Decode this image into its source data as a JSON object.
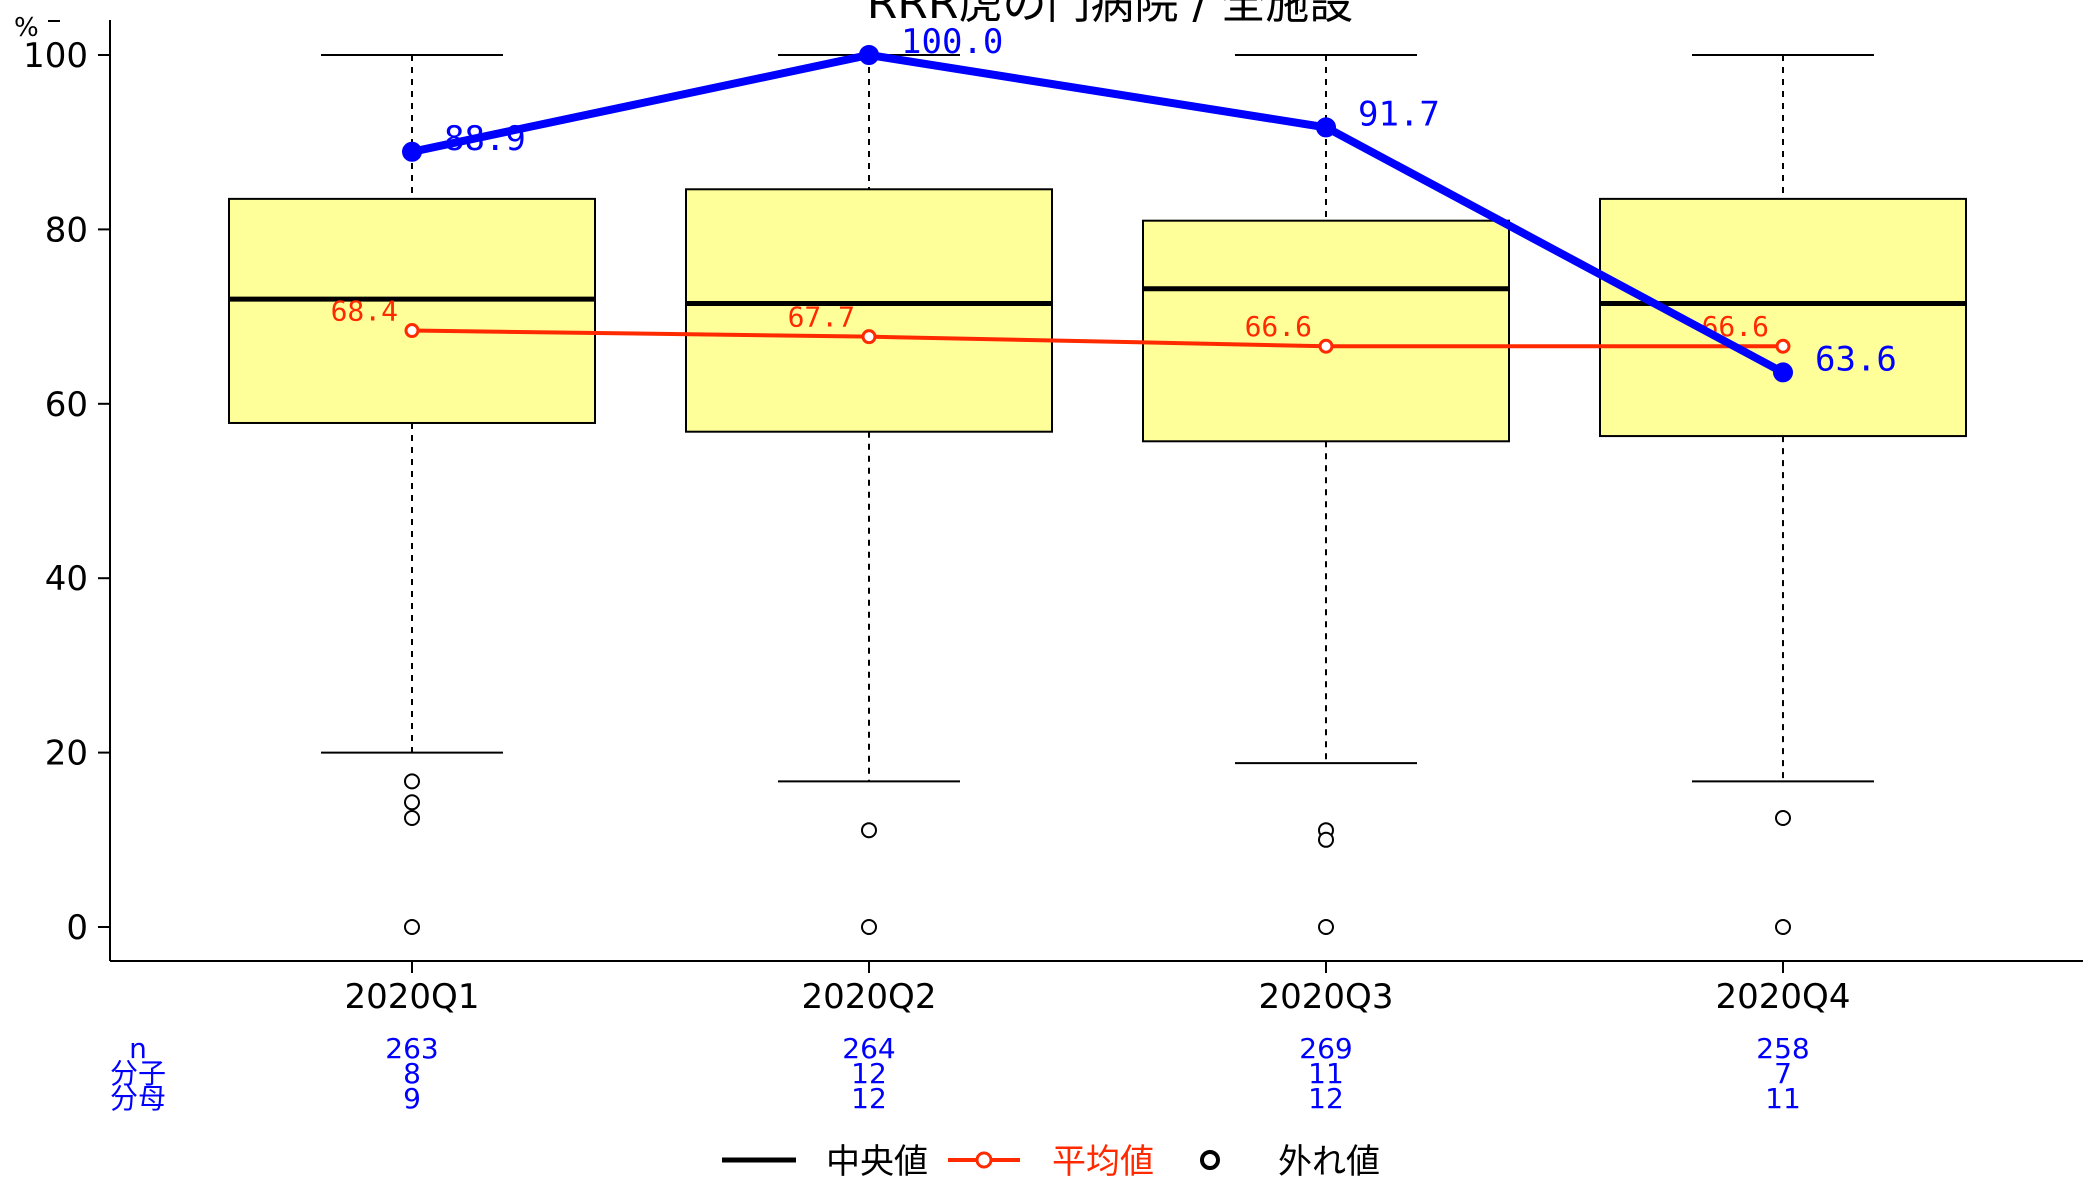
{
  "chart_data": {
    "type": "box",
    "title": "RRR虎の門病院 / 全施設",
    "ylabel": "%",
    "ylim": [
      0,
      100
    ],
    "yticks": [
      0,
      20,
      40,
      60,
      80,
      100
    ],
    "categories": [
      "2020Q1",
      "2020Q2",
      "2020Q3",
      "2020Q4"
    ],
    "boxes": [
      {
        "whisker_low": 20.0,
        "q1": 57.8,
        "median": 72.0,
        "q3": 83.5,
        "whisker_high": 100,
        "outliers": [
          16.7,
          14.3,
          12.5,
          0
        ]
      },
      {
        "whisker_low": 16.7,
        "q1": 56.8,
        "median": 71.5,
        "q3": 84.6,
        "whisker_high": 100,
        "outliers": [
          11.1,
          0
        ]
      },
      {
        "whisker_low": 18.8,
        "q1": 55.7,
        "median": 73.2,
        "q3": 81.0,
        "whisker_high": 100,
        "outliers": [
          11.1,
          10.0,
          0
        ]
      },
      {
        "whisker_low": 16.7,
        "q1": 56.3,
        "median": 71.5,
        "q3": 83.5,
        "whisker_high": 100,
        "outliers": [
          12.5,
          0
        ]
      }
    ],
    "series": [
      {
        "name": "",
        "values": [
          88.9,
          100.0,
          91.7,
          63.6
        ],
        "labels": [
          "88.9",
          "100.0",
          "91.7",
          "63.6"
        ],
        "color": "#0000ff"
      },
      {
        "name": "平均値",
        "values": [
          68.4,
          67.7,
          66.6,
          66.6
        ],
        "labels": [
          "68.4",
          "67.7",
          "66.6",
          "66.6"
        ],
        "color": "#ff2a00"
      }
    ],
    "table": {
      "row_labels": [
        "n",
        "分子",
        "分母"
      ],
      "rows": [
        [
          "263",
          "264",
          "269",
          "258"
        ],
        [
          "8",
          "12",
          "11",
          "7"
        ],
        [
          "9",
          "12",
          "12",
          "11"
        ]
      ],
      "color": "#0000ff"
    },
    "legend": {
      "position": "bottom",
      "items": [
        {
          "label": "中央値",
          "kind": "line",
          "color": "#000000"
        },
        {
          "label": "平均値",
          "kind": "line-point",
          "color": "#ff2a00"
        },
        {
          "label": "外れ値",
          "kind": "circle",
          "color": "#000000"
        }
      ]
    },
    "colors": {
      "box_fill": "#ffff99",
      "box_stroke": "#000000"
    }
  }
}
